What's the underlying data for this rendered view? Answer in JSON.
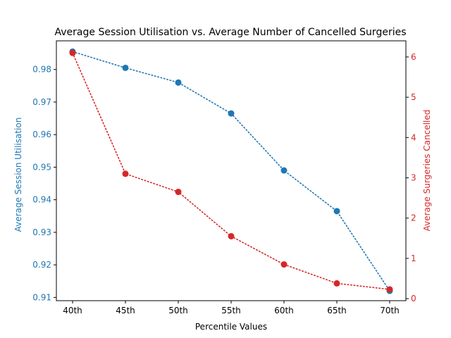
{
  "chart_data": {
    "type": "line",
    "title": "Average Session Utilisation vs. Average Number of Cancelled Surgeries",
    "xlabel": "Percentile Values",
    "categories": [
      "40th",
      "45th",
      "50th",
      "55th",
      "60th",
      "65th",
      "70th"
    ],
    "series": [
      {
        "axis": "left",
        "ylabel": "Average Session Utilisation",
        "color": "#1f77b4",
        "values": [
          0.9855,
          0.9805,
          0.976,
          0.9665,
          0.949,
          0.9365,
          0.912
        ],
        "ylim": [
          0.909,
          0.9888
        ],
        "ticks": [
          0.91,
          0.92,
          0.93,
          0.94,
          0.95,
          0.96,
          0.97,
          0.98
        ],
        "tick_labels": [
          "0.91",
          "0.92",
          "0.93",
          "0.94",
          "0.95",
          "0.96",
          "0.97",
          "0.98"
        ]
      },
      {
        "axis": "right",
        "ylabel": "Average Surgeries Cancelled",
        "color": "#d62728",
        "values": [
          6.1,
          3.1,
          2.65,
          1.55,
          0.85,
          0.38,
          0.23
        ],
        "ylim": [
          -0.05,
          6.4
        ],
        "ticks": [
          0,
          1,
          2,
          3,
          4,
          5,
          6
        ],
        "tick_labels": [
          "0",
          "1",
          "2",
          "3",
          "4",
          "5",
          "6"
        ]
      }
    ],
    "line_style": "dotted",
    "marker": "circle",
    "grid": false
  }
}
